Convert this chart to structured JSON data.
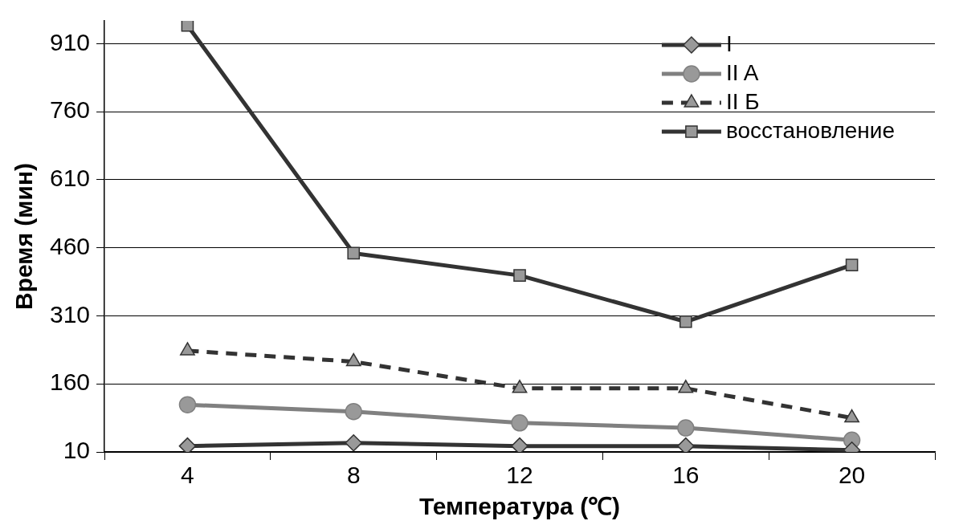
{
  "chart_data": {
    "type": "line",
    "xlabel": "Температура (℃)",
    "ylabel": "Время (мин)",
    "categories": [
      "4",
      "8",
      "12",
      "16",
      "20"
    ],
    "ylim": [
      10,
      960
    ],
    "yticks": [
      10,
      160,
      310,
      460,
      610,
      760,
      910
    ],
    "grid": "y",
    "legend": "top right",
    "series": [
      {
        "name": "I",
        "color": "#333333",
        "marker": "diamond",
        "line_style": "solid",
        "values": [
          23,
          30,
          23,
          23,
          14
        ]
      },
      {
        "name": "II A",
        "color": "#808080",
        "marker": "circle",
        "line_style": "solid",
        "values": [
          114,
          99,
          74,
          63,
          36
        ]
      },
      {
        "name": "II Б",
        "color": "#333333",
        "marker": "triangle",
        "line_style": "dashed",
        "values": [
          233,
          209,
          150,
          150,
          85
        ]
      },
      {
        "name": "восстановление",
        "color": "#333333",
        "marker": "square",
        "line_style": "solid",
        "values": [
          950,
          448,
          399,
          297,
          422
        ]
      }
    ]
  }
}
